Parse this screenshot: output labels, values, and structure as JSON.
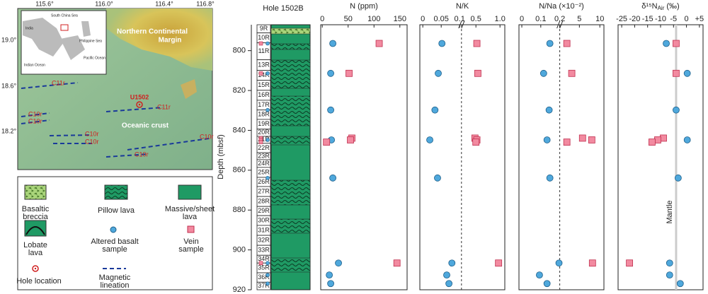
{
  "map": {
    "lon_ticks": [
      "115.6°",
      "116.0°",
      "116.4°",
      "116.8°"
    ],
    "lat_ticks": [
      "19.0°",
      "18.6°",
      "18.2°"
    ],
    "margin_label": [
      "Northern Continental",
      "Margin"
    ],
    "crust_label": "Oceanic crust",
    "site_label": "U1502",
    "lineations": [
      "C11r",
      "C11r",
      "C10r",
      "C10r",
      "C10r",
      "C10r",
      "C10r",
      "C10r"
    ],
    "inset_labels": [
      "India",
      "South China Sea",
      "Philippine Sea",
      "Pacific Ocean",
      "Indian Ocean"
    ]
  },
  "legend": {
    "items": [
      [
        "Basaltic",
        "breccia"
      ],
      [
        "Pillow lava"
      ],
      [
        "Massive/sheet",
        "lava"
      ],
      [
        "Lobate",
        "lava"
      ],
      [
        "Altered basalt",
        "sample"
      ],
      [
        "Vein",
        "sample"
      ],
      [
        "Hole location"
      ],
      [
        "Magnetic",
        "lineation"
      ]
    ]
  },
  "chart_data": [
    {
      "type": "core-log",
      "title": "Hole 1502B",
      "ylabel": "Depth (mbsf)",
      "ylim": [
        787,
        920
      ],
      "y_inverted": true,
      "yticks": [
        800,
        820,
        840,
        860,
        880,
        900,
        920
      ],
      "cores": {
        "labels": [
          "9R",
          "10R",
          "11R",
          "13R",
          "14R",
          "15R",
          "16R",
          "17R",
          "18R",
          "19R",
          "20R",
          "21R",
          "22R",
          "23R",
          "24R",
          "25R",
          "26R",
          "27R",
          "28R",
          "29R",
          "30R",
          "31R",
          "32R",
          "33R",
          "34R",
          "35R",
          "36R",
          "37R"
        ],
        "tops": [
          787.0,
          791.1,
          796.1,
          804.6,
          809.9,
          814.9,
          819.9,
          824.9,
          829.8,
          834.5,
          839.4,
          843.0,
          846.5,
          851.2,
          854.7,
          858.6,
          863.6,
          868.2,
          873.2,
          878.2,
          882.8,
          887.7,
          892.7,
          897.7,
          902.7,
          906.6,
          911.5,
          916.2
        ]
      }
    },
    {
      "type": "scatter",
      "title": "N (ppm)",
      "xlim": [
        -3,
        164
      ],
      "xticks": [
        0,
        50,
        100,
        150
      ],
      "ylim": [
        787,
        920
      ],
      "y_inverted": true,
      "series": [
        {
          "marker": "circle",
          "color": "#4fa8dc",
          "x": [
            20.4,
            16.3,
            16.3,
            17.7,
            20.4,
            31.3,
            13.6,
            16.3
          ],
          "y": [
            796.4,
            811.4,
            829.8,
            844.8,
            863.9,
            906.6,
            912.6,
            916.9
          ]
        },
        {
          "marker": "square",
          "color": "#f28aa0",
          "x": [
            110,
            51.8,
            57.2,
            54.5,
            8.2,
            144.4
          ],
          "y": [
            796.4,
            811.4,
            843.9,
            844.8,
            845.9,
            906.6
          ]
        }
      ]
    },
    {
      "type": "scatter",
      "title": "N/K",
      "ylim": [
        787,
        920
      ],
      "y_inverted": true,
      "xsegments": [
        {
          "xlim": [
            -0.008,
            0.105
          ],
          "xticks": [
            0,
            0.05,
            0.1
          ]
        },
        {
          "xlim": [
            0.2,
            1.1
          ],
          "xticks": [
            0.5,
            {
              "value": 1,
              "label": "1.0"
            }
          ]
        }
      ],
      "series": [
        {
          "marker": "circle",
          "color": "#4fa8dc",
          "x": [
            0.052,
            0.042,
            0.033,
            0.019,
            0.04,
            0.079,
            0.065,
            0.071
          ],
          "y": [
            796.4,
            811.4,
            829.8,
            844.8,
            863.9,
            906.6,
            912.6,
            916.9
          ]
        },
        {
          "marker": "square",
          "color": "#f28aa0",
          "x": [
            0.52,
            0.54,
            0.48,
            0.52,
            0.5,
            0.97
          ],
          "y": [
            796.4,
            811.4,
            843.9,
            844.8,
            845.9,
            906.6
          ]
        }
      ]
    },
    {
      "type": "scatter",
      "title": "N/Na (×10⁻²)",
      "ylim": [
        787,
        920
      ],
      "y_inverted": true,
      "xsegments": [
        {
          "xlim": [
            -0.015,
            0.2
          ],
          "xticks": [
            0,
            0.1,
            0.2
          ]
        },
        {
          "xlim": [
            0.2,
            11
          ],
          "xticks": [
            5,
            10
          ]
        }
      ],
      "series": [
        {
          "marker": "circle",
          "color": "#4fa8dc",
          "x": [
            0.148,
            0.115,
            0.144,
            0.133,
            0.148,
            0.196,
            0.093,
            0.133
          ],
          "y": [
            796.4,
            811.4,
            829.8,
            844.8,
            863.9,
            906.6,
            912.6,
            916.9
          ]
        },
        {
          "marker": "square",
          "color": "#f28aa0",
          "x": [
            1.94,
            3.14,
            5.77,
            8.03,
            1.94,
            8.2
          ],
          "y": [
            796.4,
            811.4,
            843.9,
            844.8,
            845.9,
            906.6
          ]
        }
      ]
    },
    {
      "type": "scatter",
      "title": "δ¹⁵N",
      "title_sub": "Air",
      "title_unit": "(‰)",
      "xlim": [
        -26.4,
        6.4
      ],
      "xticks": [
        -25,
        -20,
        -15,
        -10,
        -5,
        0,
        {
          "value": 5,
          "label": "+5"
        }
      ],
      "ylim": [
        787,
        920
      ],
      "y_inverted": true,
      "reference_line": {
        "value": -4,
        "label": "Mantle"
      },
      "series": [
        {
          "marker": "circle",
          "color": "#4fa8dc",
          "x": [
            -7.8,
            0.3,
            -4.0,
            0.3,
            -3.2,
            -6.5,
            -6.5,
            -2.4
          ],
          "y": [
            796.4,
            811.4,
            829.8,
            844.8,
            863.9,
            906.6,
            912.6,
            916.9
          ]
        },
        {
          "marker": "square",
          "color": "#f28aa0",
          "x": [
            -4.0,
            -4.0,
            -8.9,
            -11.1,
            -13.3,
            -22.0
          ],
          "y": [
            796.4,
            811.4,
            843.9,
            844.8,
            845.9,
            906.6
          ]
        }
      ]
    }
  ]
}
